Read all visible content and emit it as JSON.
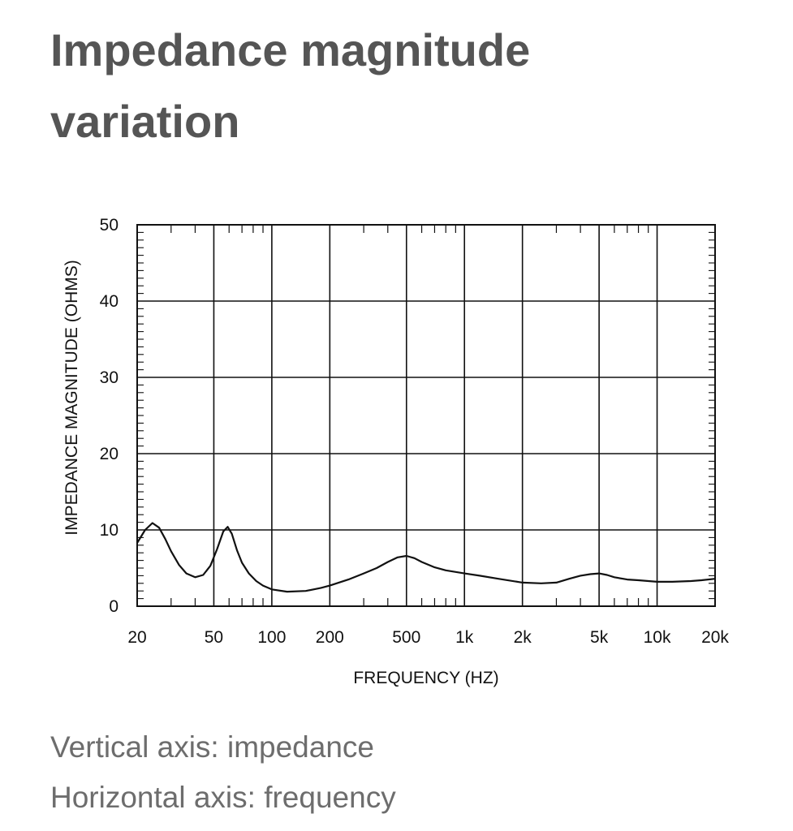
{
  "heading": {
    "line1": "Impedance magnitude",
    "line2": "variation"
  },
  "captions": {
    "vertical": "Vertical axis: impedance",
    "horizontal": "Horizontal axis: frequency"
  },
  "chart_data": {
    "type": "line",
    "title": "",
    "xlabel": "FREQUENCY (HZ)",
    "ylabel": "IMPEDANCE MAGNITUDE (OHMS)",
    "x_scale": "log",
    "xlim": [
      20,
      20000
    ],
    "ylim": [
      0,
      50
    ],
    "x_ticks": [
      {
        "value": 20,
        "label": "20"
      },
      {
        "value": 50,
        "label": "50"
      },
      {
        "value": 100,
        "label": "100"
      },
      {
        "value": 200,
        "label": "200"
      },
      {
        "value": 500,
        "label": "500"
      },
      {
        "value": 1000,
        "label": "1k"
      },
      {
        "value": 2000,
        "label": "2k"
      },
      {
        "value": 5000,
        "label": "5k"
      },
      {
        "value": 10000,
        "label": "10k"
      },
      {
        "value": 20000,
        "label": "20k"
      }
    ],
    "y_ticks": [
      0,
      10,
      20,
      30,
      40,
      50
    ],
    "grid": true,
    "series": [
      {
        "x": [
          20,
          22,
          24,
          26,
          28,
          30,
          33,
          36,
          40,
          44,
          48,
          52,
          56,
          59,
          62,
          66,
          70,
          76,
          83,
          90,
          100,
          120,
          150,
          180,
          200,
          250,
          300,
          350,
          400,
          450,
          500,
          550,
          600,
          700,
          800,
          1000,
          1200,
          1500,
          2000,
          2500,
          3000,
          3500,
          4000,
          4500,
          5000,
          5500,
          6000,
          7000,
          8000,
          10000,
          12000,
          15000,
          17000,
          20000
        ],
        "y": [
          8.3,
          10.0,
          10.9,
          10.3,
          8.8,
          7.2,
          5.4,
          4.3,
          3.8,
          4.1,
          5.3,
          7.5,
          9.8,
          10.4,
          9.5,
          7.3,
          5.7,
          4.3,
          3.3,
          2.7,
          2.2,
          1.9,
          2.0,
          2.4,
          2.7,
          3.5,
          4.3,
          5.0,
          5.8,
          6.4,
          6.6,
          6.3,
          5.8,
          5.1,
          4.7,
          4.3,
          4.0,
          3.6,
          3.1,
          3.0,
          3.1,
          3.6,
          4.0,
          4.2,
          4.3,
          4.1,
          3.8,
          3.5,
          3.4,
          3.2,
          3.2,
          3.3,
          3.4,
          3.6
        ]
      }
    ]
  },
  "colors": {
    "title": "#555555",
    "caption": "#6d6d6d",
    "line": "#111111",
    "grid": "#111111"
  }
}
